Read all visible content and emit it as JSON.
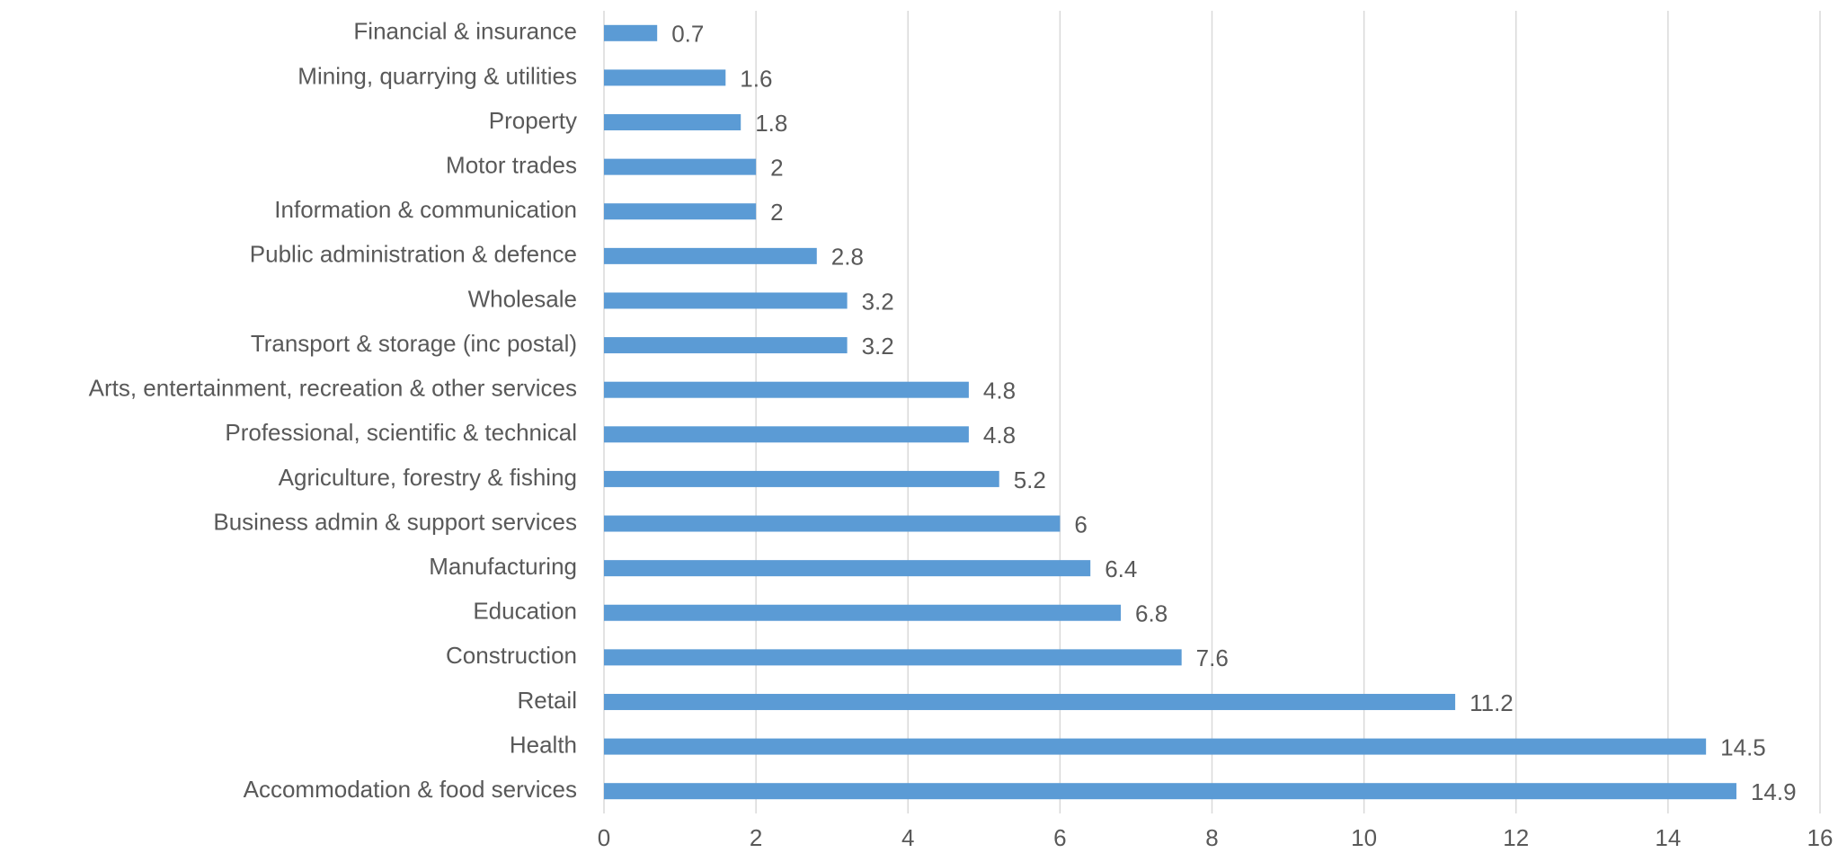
{
  "chart_data": {
    "type": "bar",
    "orientation": "horizontal",
    "categories": [
      "Financial & insurance",
      "Mining, quarrying & utilities",
      "Property",
      "Motor trades",
      "Information & communication",
      "Public administration & defence",
      "Wholesale",
      "Transport & storage (inc postal)",
      "Arts, entertainment, recreation & other services",
      "Professional, scientific & technical",
      "Agriculture, forestry & fishing",
      "Business admin & support services",
      "Manufacturing",
      "Education",
      "Construction",
      "Retail",
      "Health",
      "Accommodation & food services"
    ],
    "values": [
      0.7,
      1.6,
      1.8,
      2,
      2,
      2.8,
      3.2,
      3.2,
      4.8,
      4.8,
      5.2,
      6,
      6.4,
      6.8,
      7.6,
      11.2,
      14.5,
      14.9
    ],
    "color": "#5b9bd5",
    "xlim": [
      0,
      16
    ],
    "xticks": [
      0,
      2,
      4,
      6,
      8,
      10,
      12,
      14,
      16
    ],
    "grid": true
  }
}
